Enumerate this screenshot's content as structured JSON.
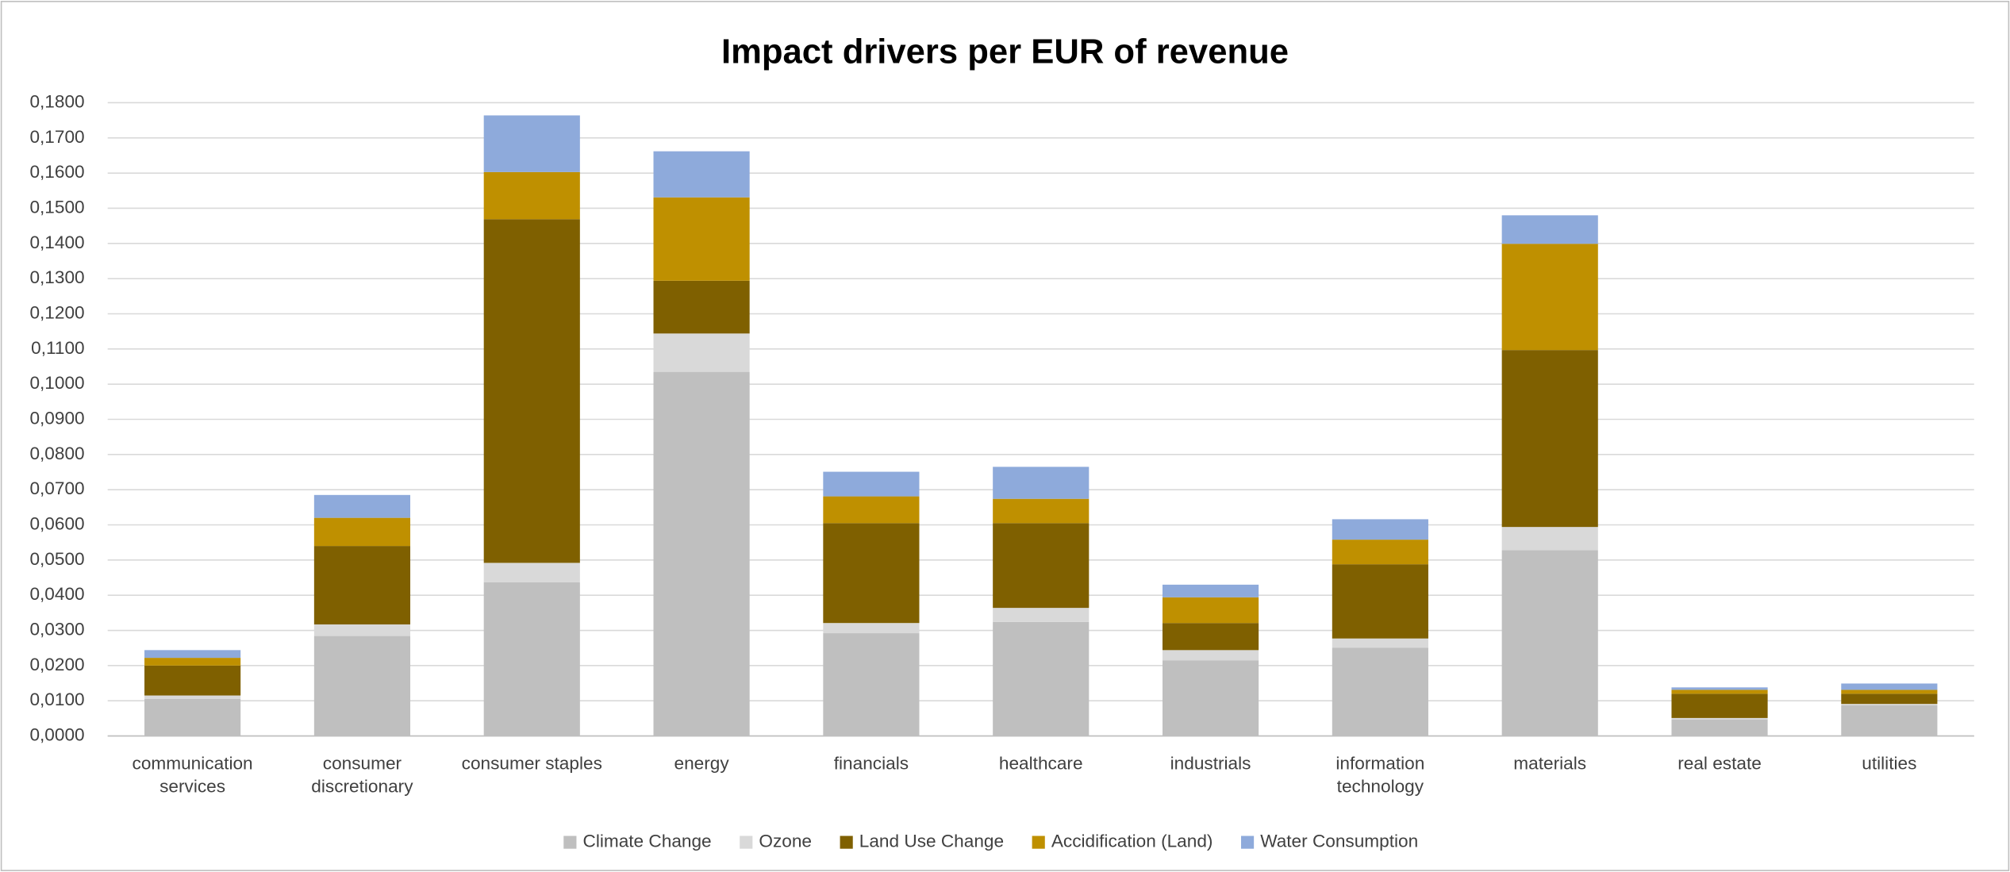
{
  "chart_data": {
    "type": "stacked_bar",
    "title": "Impact drivers per EUR of revenue",
    "categories": [
      "communication services",
      "consumer discretionary",
      "consumer staples",
      "energy",
      "financials",
      "healthcare",
      "industrials",
      "information technology",
      "materials",
      "real estate",
      "utilities"
    ],
    "series": [
      {
        "name": "Climate Change",
        "color": "#bfbfbf",
        "values": [
          0.0105,
          0.0284,
          0.0437,
          0.1035,
          0.0292,
          0.0324,
          0.0215,
          0.0251,
          0.0528,
          0.0047,
          0.0087
        ]
      },
      {
        "name": "Ozone",
        "color": "#d9d9d9",
        "values": [
          0.001,
          0.0033,
          0.0055,
          0.0109,
          0.0029,
          0.004,
          0.0029,
          0.0026,
          0.0066,
          0.0004,
          0.0004
        ]
      },
      {
        "name": "Land Use Change",
        "color": "#7f6000",
        "values": [
          0.0085,
          0.0223,
          0.0977,
          0.015,
          0.0284,
          0.0241,
          0.0077,
          0.0211,
          0.0503,
          0.0069,
          0.0029
        ]
      },
      {
        "name": "Accidification (Land)",
        "color": "#bf9000",
        "values": [
          0.0022,
          0.008,
          0.0134,
          0.0237,
          0.0076,
          0.0069,
          0.0073,
          0.007,
          0.0302,
          0.0011,
          0.0011
        ]
      },
      {
        "name": "Water Consumption",
        "color": "#8eaadb",
        "values": [
          0.0022,
          0.0065,
          0.0161,
          0.0131,
          0.007,
          0.0091,
          0.0036,
          0.0058,
          0.0081,
          0.0007,
          0.0018
        ]
      }
    ],
    "ylim": [
      0,
      0.18
    ],
    "yticks": [
      {
        "value": 0,
        "label": "0,0000"
      },
      {
        "value": 0.01,
        "label": "0,0100"
      },
      {
        "value": 0.02,
        "label": "0,0200"
      },
      {
        "value": 0.03,
        "label": "0,0300"
      },
      {
        "value": 0.04,
        "label": "0,0400"
      },
      {
        "value": 0.05,
        "label": "0,0500"
      },
      {
        "value": 0.06,
        "label": "0,0600"
      },
      {
        "value": 0.07,
        "label": "0,0700"
      },
      {
        "value": 0.08,
        "label": "0,0800"
      },
      {
        "value": 0.09,
        "label": "0,0900"
      },
      {
        "value": 0.1,
        "label": "0,1000"
      },
      {
        "value": 0.11,
        "label": "0,1100"
      },
      {
        "value": 0.12,
        "label": "0,1200"
      },
      {
        "value": 0.13,
        "label": "0,1300"
      },
      {
        "value": 0.14,
        "label": "0,1400"
      },
      {
        "value": 0.15,
        "label": "0,1500"
      },
      {
        "value": 0.16,
        "label": "0,1600"
      },
      {
        "value": 0.17,
        "label": "0,1700"
      },
      {
        "value": 0.18,
        "label": "0,1800"
      }
    ],
    "grid": true,
    "legend": "bottom"
  }
}
